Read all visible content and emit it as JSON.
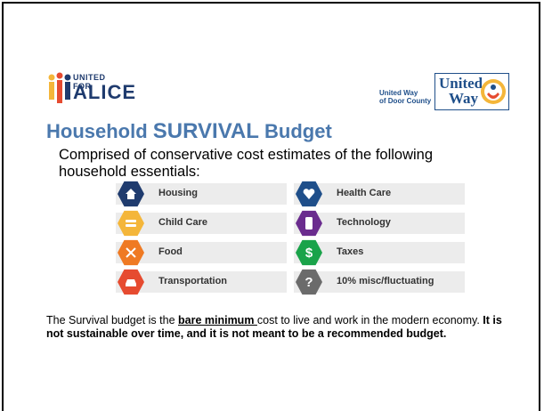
{
  "logos": {
    "alice_top": "UNITED FOR",
    "alice_main": "ALICE",
    "uw_local_line1": "United Way",
    "uw_local_line2": "of Door County",
    "uw_logo_line1": "United",
    "uw_logo_line2": "Way"
  },
  "title": {
    "part1": "Household ",
    "part2": "SURVIVAL",
    "part3": " Budget"
  },
  "intro": "Comprised of conservative cost estimates of the following household essentials:",
  "essentials": [
    {
      "label": "Housing",
      "color": "#1f3b6e"
    },
    {
      "label": "Child Care",
      "color": "#f4b63a"
    },
    {
      "label": "Food",
      "color": "#ef7a23"
    },
    {
      "label": "Transportation",
      "color": "#e64b30"
    },
    {
      "label": "Health Care",
      "color": "#1f4f8a"
    },
    {
      "label": "Technology",
      "color": "#6a2c8e"
    },
    {
      "label": "Taxes",
      "color": "#1aa34a",
      "symbol": "$"
    },
    {
      "label": "10% misc/fluctuating",
      "color": "#6b6b6b",
      "symbol": "?"
    }
  ],
  "note": {
    "p1": "The Survival budget is the ",
    "p2": "bare minimum ",
    "p3": "cost to live and work in the modern economy. ",
    "p4": "It is not sustainable over time, and it is not meant to be a recommended budget."
  }
}
